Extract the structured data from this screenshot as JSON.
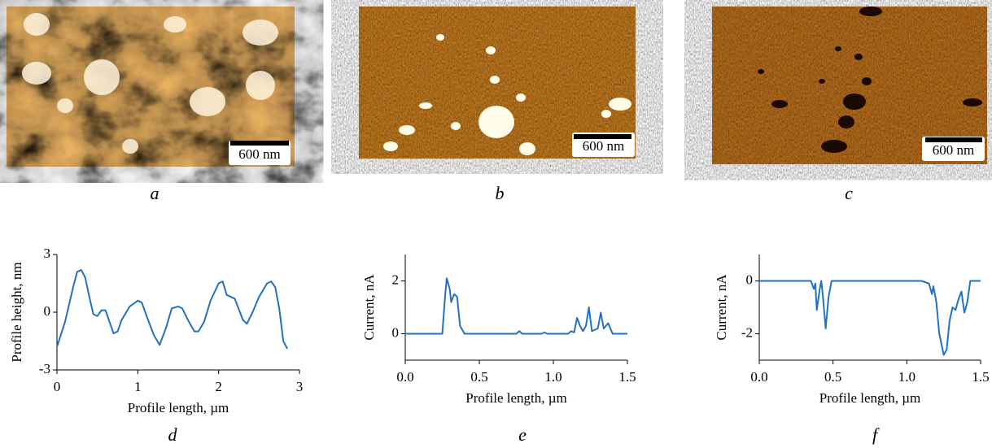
{
  "images": [
    {
      "label": "a",
      "scale_bar": "600 nm"
    },
    {
      "label": "b",
      "scale_bar": "600 nm"
    },
    {
      "label": "c",
      "scale_bar": "600 nm"
    }
  ],
  "chart_data": [
    {
      "type": "line",
      "label": "d",
      "color": "#2372bd",
      "x_label": "Profile length, µm",
      "y_label": "Profile height, nm",
      "x": [
        0,
        0.1,
        0.2,
        0.25,
        0.3,
        0.35,
        0.4,
        0.45,
        0.5,
        0.55,
        0.6,
        0.65,
        0.7,
        0.75,
        0.8,
        0.9,
        1.0,
        1.05,
        1.1,
        1.2,
        1.27,
        1.35,
        1.42,
        1.5,
        1.55,
        1.62,
        1.7,
        1.75,
        1.82,
        1.9,
        2.0,
        2.05,
        2.1,
        2.15,
        2.2,
        2.3,
        2.35,
        2.42,
        2.5,
        2.6,
        2.65,
        2.7,
        2.75,
        2.8,
        2.85
      ],
      "values": [
        -1.8,
        -0.5,
        1.3,
        2.1,
        2.2,
        1.8,
        0.8,
        -0.1,
        -0.2,
        0.1,
        0.1,
        -0.5,
        -1.1,
        -1.0,
        -0.4,
        0.3,
        0.6,
        0.5,
        -0.1,
        -1.2,
        -1.7,
        -0.8,
        0.2,
        0.3,
        0.2,
        -0.4,
        -1.0,
        -1.0,
        -0.5,
        0.6,
        1.5,
        1.6,
        0.9,
        0.8,
        0.7,
        -0.4,
        -0.6,
        0.0,
        0.8,
        1.5,
        1.6,
        1.3,
        0.2,
        -1.5,
        -1.9
      ],
      "xlim": [
        0,
        3
      ],
      "xticks": [
        0,
        1,
        2,
        3
      ],
      "ylim": [
        -3,
        3
      ],
      "yticks": [
        -3,
        0,
        3
      ]
    },
    {
      "type": "line",
      "label": "e",
      "color": "#2372bd",
      "x_label": "Profile length, µm",
      "y_label": "Current, nA",
      "x": [
        0,
        0.25,
        0.27,
        0.28,
        0.3,
        0.31,
        0.33,
        0.35,
        0.37,
        0.4,
        0.75,
        0.77,
        0.79,
        0.92,
        0.94,
        0.96,
        1.1,
        1.12,
        1.14,
        1.16,
        1.18,
        1.2,
        1.22,
        1.24,
        1.26,
        1.3,
        1.32,
        1.34,
        1.37,
        1.4,
        1.5
      ],
      "values": [
        0,
        0,
        1.5,
        2.1,
        1.7,
        1.2,
        1.5,
        1.4,
        0.3,
        0,
        0,
        0.1,
        0,
        0,
        0.05,
        0,
        0,
        0.1,
        0.05,
        0.6,
        0.3,
        0.1,
        0.3,
        1.0,
        0.1,
        0.2,
        0.8,
        0.2,
        0.4,
        0,
        0
      ],
      "xlim": [
        0,
        1.5
      ],
      "xticks": [
        {
          "value": 0,
          "label": "0.0"
        },
        0.5,
        {
          "value": 1,
          "label": "1.0"
        },
        1.5
      ],
      "ylim": [
        -1,
        3
      ],
      "yticks": [
        0,
        2
      ]
    },
    {
      "type": "line",
      "label": "f",
      "color": "#2372bd",
      "x_label": "Profile length, µm",
      "y_label": "Current, nA",
      "x": [
        0,
        0.35,
        0.37,
        0.38,
        0.39,
        0.41,
        0.42,
        0.43,
        0.45,
        0.47,
        0.49,
        1.1,
        1.15,
        1.17,
        1.18,
        1.2,
        1.22,
        1.25,
        1.27,
        1.29,
        1.31,
        1.33,
        1.35,
        1.37,
        1.39,
        1.41,
        1.43,
        1.5
      ],
      "values": [
        0,
        0,
        -0.3,
        -0.1,
        -1.1,
        -0.3,
        0,
        -0.5,
        -1.8,
        -0.6,
        0,
        0,
        -0.1,
        -0.5,
        -0.2,
        -0.8,
        -2.0,
        -2.8,
        -2.6,
        -1.5,
        -1.0,
        -1.1,
        -0.7,
        -0.4,
        -1.2,
        -0.8,
        0,
        0
      ],
      "xlim": [
        0,
        1.5
      ],
      "xticks": [
        {
          "value": 0,
          "label": "0.0"
        },
        0.5,
        {
          "value": 1,
          "label": "1.0"
        },
        1.5
      ],
      "ylim": [
        -3,
        1
      ],
      "yticks": [
        -2,
        0
      ]
    }
  ]
}
